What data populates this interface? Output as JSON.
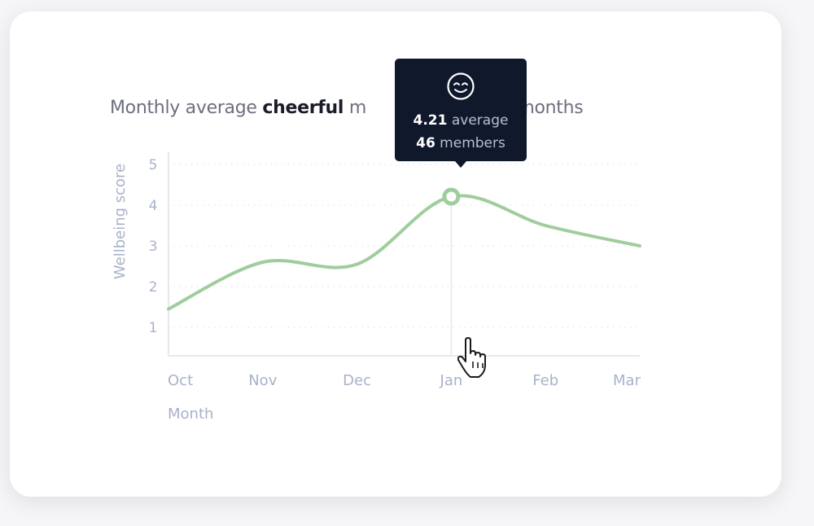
{
  "title": {
    "prefix": "Monthly average ",
    "mood": "cheerful",
    "suffix": " m",
    "tail": "t 6 months"
  },
  "tooltip": {
    "icon": "smiling-face-icon",
    "average_value": "4.21",
    "average_label": " average",
    "members_value": "46",
    "members_label": " members"
  },
  "colors": {
    "line": "#9fcd9d",
    "tooltip_bg": "#10182b",
    "axis_text": "#a9b2c9"
  },
  "chart_data": {
    "type": "line",
    "title": "Monthly average cheerful m… t 6 months",
    "xlabel": "Month",
    "ylabel": "Wellbeing score",
    "categories": [
      "Oct",
      "Nov",
      "Dec",
      "Jan",
      "Feb",
      "Mar"
    ],
    "x_ticks": [
      "Oct",
      "Nov",
      "Dec",
      "Jan",
      "Feb",
      "Mar"
    ],
    "y_ticks": [
      "1",
      "2",
      "3",
      "4",
      "5"
    ],
    "ylim": [
      0.3,
      5.3
    ],
    "grid": "horizontal dotted",
    "series": [
      {
        "values": [
          1.45,
          2.6,
          2.55,
          4.21,
          3.5,
          3.0
        ]
      }
    ],
    "highlight": {
      "category": "Jan",
      "value": 4.21,
      "members": 46
    }
  }
}
